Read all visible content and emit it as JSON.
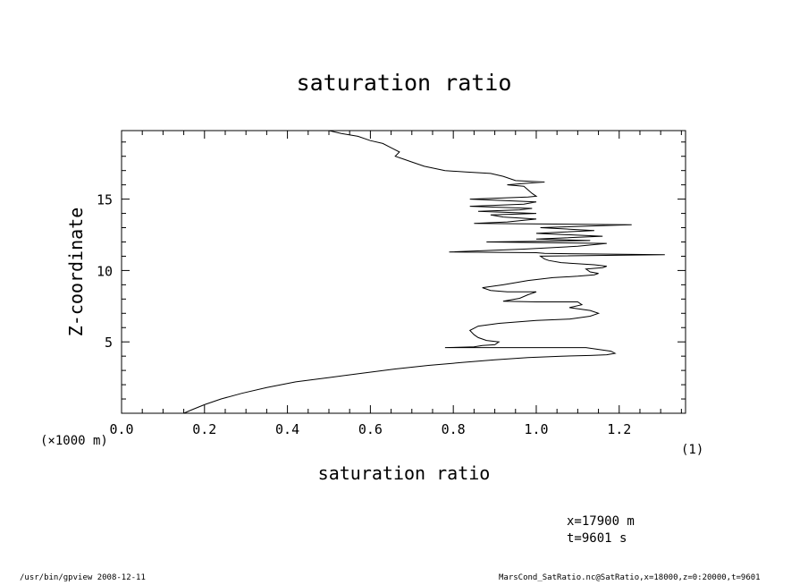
{
  "chart_data": {
    "type": "line",
    "title": "saturation ratio",
    "xlabel": "saturation ratio",
    "ylabel": "Z-coordinate",
    "x_unit_label": "(1)",
    "y_unit_label": "(×1000 m)",
    "xlim": [
      0.0,
      1.36
    ],
    "ylim": [
      0.0,
      19.8
    ],
    "x_ticks": [
      "0.0",
      "0.2",
      "0.4",
      "0.6",
      "0.8",
      "1.0",
      "1.2"
    ],
    "y_ticks": [
      "5",
      "10",
      "15"
    ],
    "grid": false,
    "series": [
      {
        "x": [
          0.15,
          0.17,
          0.2,
          0.24,
          0.29,
          0.35,
          0.42,
          0.5,
          0.58,
          0.66,
          0.74,
          0.82,
          0.9,
          0.98,
          1.06,
          1.13,
          1.17,
          1.19,
          1.18,
          1.12,
          0.92,
          0.78,
          0.85,
          0.87,
          0.9,
          0.91,
          0.88,
          0.86,
          0.85,
          0.84,
          0.86,
          0.91,
          1.0,
          1.08,
          1.13,
          1.15,
          1.13,
          1.08,
          1.11,
          1.1,
          1.0,
          0.92,
          0.96,
          0.98,
          1.0,
          0.93,
          0.89,
          0.87,
          0.92,
          0.98,
          1.04,
          1.1,
          1.14,
          1.15,
          1.13,
          1.12,
          1.16,
          1.17,
          1.14,
          1.06,
          1.03,
          1.02,
          1.01,
          1.31,
          1.02,
          1.0,
          0.79,
          0.97,
          1.1,
          1.17,
          0.88,
          1.13,
          1.0,
          1.16,
          1.0,
          1.14,
          1.01,
          1.23,
          0.85,
          0.93,
          1.0,
          0.92,
          0.89,
          1.0,
          0.86,
          0.96,
          0.99,
          0.84,
          0.97,
          1.0,
          0.84,
          0.98,
          1.0,
          0.99,
          0.98,
          0.97,
          0.93,
          0.97,
          1.02,
          0.95,
          0.92,
          0.89,
          0.83,
          0.78,
          0.73,
          0.7,
          0.68,
          0.66,
          0.67,
          0.65,
          0.63,
          0.6,
          0.57,
          0.53,
          0.5
        ],
        "y": [
          0.0,
          0.25,
          0.6,
          1.0,
          1.4,
          1.8,
          2.2,
          2.5,
          2.8,
          3.1,
          3.35,
          3.55,
          3.75,
          3.9,
          4.0,
          4.05,
          4.1,
          4.2,
          4.35,
          4.6,
          4.6,
          4.6,
          4.65,
          4.75,
          4.8,
          5.0,
          5.1,
          5.3,
          5.5,
          5.8,
          6.1,
          6.3,
          6.5,
          6.6,
          6.8,
          7.0,
          7.2,
          7.4,
          7.6,
          7.8,
          7.8,
          7.85,
          8.05,
          8.3,
          8.5,
          8.5,
          8.6,
          8.8,
          9.0,
          9.3,
          9.5,
          9.6,
          9.7,
          9.8,
          9.9,
          10.1,
          10.2,
          10.3,
          10.4,
          10.55,
          10.7,
          10.8,
          11.0,
          11.1,
          11.2,
          11.25,
          11.3,
          11.5,
          11.7,
          11.9,
          12.0,
          12.1,
          12.2,
          12.4,
          12.6,
          12.8,
          13.0,
          13.2,
          13.3,
          13.4,
          13.6,
          13.75,
          13.9,
          14.0,
          14.15,
          14.25,
          14.35,
          14.5,
          14.65,
          14.8,
          15.0,
          15.15,
          15.2,
          15.4,
          15.65,
          15.9,
          16.0,
          16.1,
          16.2,
          16.3,
          16.6,
          16.8,
          16.9,
          17.0,
          17.3,
          17.6,
          17.8,
          18.0,
          18.3,
          18.6,
          18.9,
          19.1,
          19.4,
          19.6,
          19.8
        ]
      }
    ]
  },
  "annotations": {
    "x_position": "x=17900  m",
    "time": "t=9601  s"
  },
  "footer": {
    "left": "/usr/bin/gpview   2008-12-11",
    "right": "MarsCond_SatRatio.nc@SatRatio,x=18000,z=0:20000,t=9601"
  }
}
